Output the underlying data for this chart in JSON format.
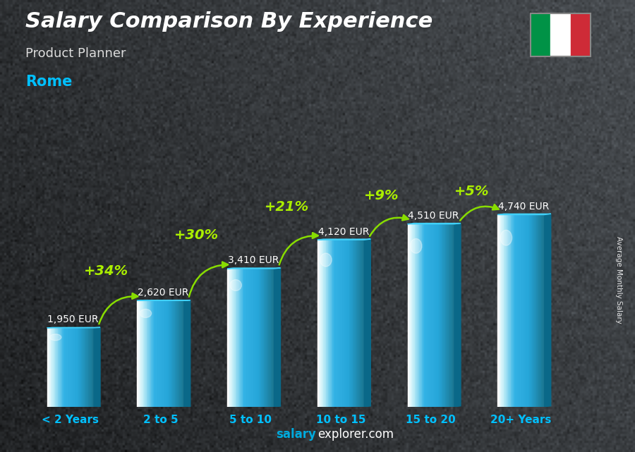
{
  "title": "Salary Comparison By Experience",
  "subtitle": "Product Planner",
  "city": "Rome",
  "ylabel": "Average Monthly Salary",
  "watermark_salary": "salary",
  "watermark_explorer": "explorer.com",
  "categories": [
    "< 2 Years",
    "2 to 5",
    "5 to 10",
    "10 to 15",
    "15 to 20",
    "20+ Years"
  ],
  "values": [
    1950,
    2620,
    3410,
    4120,
    4510,
    4740
  ],
  "value_labels": [
    "1,950 EUR",
    "2,620 EUR",
    "3,410 EUR",
    "4,120 EUR",
    "4,510 EUR",
    "4,740 EUR"
  ],
  "pct_labels": [
    "+34%",
    "+30%",
    "+21%",
    "+9%",
    "+5%"
  ],
  "bar_color_front": "#1ab8e8",
  "bar_color_left_edge": "#a0e8f8",
  "bar_color_right_edge": "#0878a8",
  "bar_color_top": "#40d0f8",
  "bar_color_side": "#0a6888",
  "bg_color": "#2d3238",
  "title_color": "#ffffff",
  "subtitle_color": "#dddddd",
  "city_color": "#00c0ff",
  "value_label_color": "#ffffff",
  "pct_label_color": "#aaee00",
  "arrow_color": "#88dd00",
  "watermark_salary_color": "#00aadd",
  "watermark_explorer_color": "#ffffff",
  "ylim": [
    0,
    5800
  ],
  "bar_width": 0.52,
  "flag_green": "#009246",
  "flag_white": "#ffffff",
  "flag_red": "#ce2b37",
  "pct_fontsize": 14,
  "val_fontsize": 10,
  "title_fontsize": 22,
  "subtitle_fontsize": 13,
  "city_fontsize": 15,
  "cat_fontsize": 11,
  "arc_offsets_y": [
    600,
    700,
    700,
    600,
    500
  ],
  "pct_offset_x": [
    -0.15,
    -0.15,
    -0.15,
    -0.1,
    -0.1
  ],
  "pct_offset_y": [
    120,
    120,
    120,
    100,
    80
  ]
}
